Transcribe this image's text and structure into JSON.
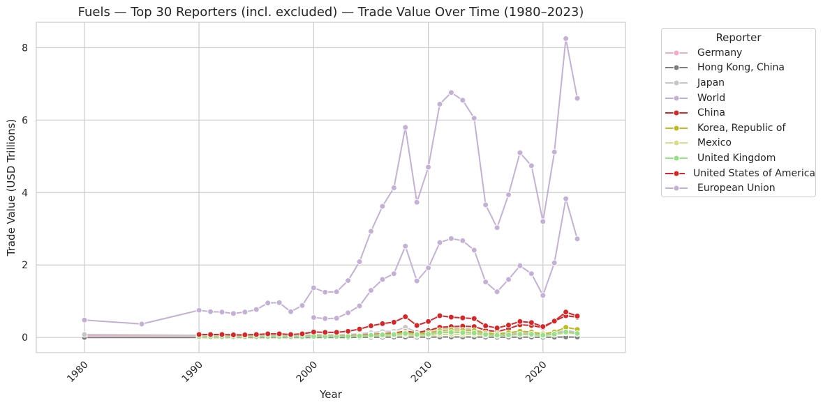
{
  "chart_data": {
    "type": "line",
    "title": "Fuels — Top 30 Reporters (incl. excluded) — Trade Value Over Time (1980–2023)",
    "xlabel": "Year",
    "ylabel": "Trade Value (USD Trillions)",
    "xlim": [
      1975.8,
      2027.2
    ],
    "ylim": [
      -0.42,
      8.7
    ],
    "xticks": [
      1980,
      1990,
      2000,
      2010,
      2020
    ],
    "yticks": [
      0,
      2,
      4,
      6,
      8
    ],
    "grid": true,
    "legend_title": "Reporter",
    "legend_position": "outside-right",
    "series": [
      {
        "name": "Germany",
        "color": "#f4a9c8",
        "x": [
          1980,
          1990,
          1991,
          1992,
          1993,
          1994,
          1995,
          1996,
          1997,
          1998,
          1999,
          2000,
          2001,
          2002,
          2003,
          2004,
          2005,
          2006,
          2007,
          2008,
          2009,
          2010,
          2011,
          2012,
          2013,
          2014,
          2015,
          2016,
          2017,
          2018,
          2019,
          2020,
          2021,
          2022,
          2023
        ],
        "values": [
          0.05,
          0.05,
          0.05,
          0.045,
          0.045,
          0.04,
          0.045,
          0.05,
          0.05,
          0.04,
          0.04,
          0.05,
          0.05,
          0.05,
          0.06,
          0.07,
          0.09,
          0.1,
          0.12,
          0.15,
          0.1,
          0.12,
          0.15,
          0.15,
          0.15,
          0.14,
          0.09,
          0.07,
          0.09,
          0.11,
          0.1,
          0.07,
          0.1,
          0.16,
          0.12
        ]
      },
      {
        "name": "Hong Kong, China",
        "color": "#7f7f7f",
        "x": [
          1980,
          1990,
          1991,
          1992,
          1993,
          1994,
          1995,
          1996,
          1997,
          1998,
          1999,
          2000,
          2001,
          2002,
          2003,
          2004,
          2005,
          2006,
          2007,
          2008,
          2009,
          2010,
          2011,
          2012,
          2013,
          2014,
          2015,
          2016,
          2017,
          2018,
          2019,
          2020,
          2021,
          2022,
          2023
        ],
        "values": [
          0.0,
          0.0,
          0.0,
          0.0,
          0.0,
          0.0,
          0.0,
          0.0,
          0.0,
          0.0,
          0.0,
          0.0,
          0.0,
          0.0,
          0.0,
          0.005,
          0.005,
          0.008,
          0.01,
          0.012,
          0.008,
          0.01,
          0.012,
          0.012,
          0.012,
          0.012,
          0.008,
          0.006,
          0.008,
          0.01,
          0.009,
          0.006,
          0.008,
          0.012,
          0.01
        ]
      },
      {
        "name": "Japan",
        "color": "#c7c7c7",
        "x": [
          1980,
          1990,
          1991,
          1992,
          1993,
          1994,
          1995,
          1996,
          1997,
          1998,
          1999,
          2000,
          2001,
          2002,
          2003,
          2004,
          2005,
          2006,
          2007,
          2008,
          2009,
          2010,
          2011,
          2012,
          2013,
          2014,
          2015,
          2016,
          2017,
          2018,
          2019,
          2020,
          2021,
          2022,
          2023
        ],
        "values": [
          0.08,
          0.06,
          0.06,
          0.06,
          0.05,
          0.05,
          0.06,
          0.06,
          0.06,
          0.04,
          0.05,
          0.08,
          0.07,
          0.07,
          0.08,
          0.1,
          0.13,
          0.16,
          0.17,
          0.28,
          0.15,
          0.19,
          0.24,
          0.26,
          0.25,
          0.22,
          0.13,
          0.09,
          0.12,
          0.16,
          0.13,
          0.08,
          0.12,
          0.2,
          0.14
        ]
      },
      {
        "name": "World",
        "color": "#c5b0d5",
        "x": [
          1980,
          1985,
          1990,
          1991,
          1992,
          1993,
          1994,
          1995,
          1996,
          1997,
          1998,
          1999,
          2000,
          2001,
          2002,
          2003,
          2004,
          2005,
          2006,
          2007,
          2008,
          2009,
          2010,
          2011,
          2012,
          2013,
          2014,
          2015,
          2016,
          2017,
          2018,
          2019,
          2020,
          2021,
          2022,
          2023
        ],
        "values": [
          0.48,
          0.37,
          0.75,
          0.71,
          0.7,
          0.66,
          0.7,
          0.77,
          0.95,
          0.96,
          0.71,
          0.88,
          1.37,
          1.25,
          1.26,
          1.57,
          2.09,
          2.93,
          3.62,
          4.13,
          5.8,
          3.73,
          4.7,
          6.44,
          6.76,
          6.55,
          6.05,
          3.66,
          3.03,
          3.94,
          5.1,
          4.74,
          3.2,
          5.12,
          8.25,
          6.6
        ]
      },
      {
        "name": "China",
        "color": "#d62728",
        "x": [
          1990,
          1991,
          1992,
          1993,
          1994,
          1995,
          1996,
          1997,
          1998,
          1999,
          2000,
          2001,
          2002,
          2003,
          2004,
          2005,
          2006,
          2007,
          2008,
          2009,
          2010,
          2011,
          2012,
          2013,
          2014,
          2015,
          2016,
          2017,
          2018,
          2019,
          2020,
          2021,
          2022,
          2023
        ],
        "values": [
          0.005,
          0.005,
          0.006,
          0.008,
          0.008,
          0.01,
          0.012,
          0.015,
          0.012,
          0.015,
          0.025,
          0.025,
          0.03,
          0.04,
          0.06,
          0.08,
          0.1,
          0.12,
          0.17,
          0.13,
          0.19,
          0.28,
          0.3,
          0.31,
          0.3,
          0.2,
          0.16,
          0.24,
          0.35,
          0.33,
          0.27,
          0.45,
          0.6,
          0.56
        ]
      },
      {
        "name": "Korea, Republic of",
        "color": "#bcbd22",
        "x": [
          1990,
          1991,
          1992,
          1993,
          1994,
          1995,
          1996,
          1997,
          1998,
          1999,
          2000,
          2001,
          2002,
          2003,
          2004,
          2005,
          2006,
          2007,
          2008,
          2009,
          2010,
          2011,
          2012,
          2013,
          2014,
          2015,
          2016,
          2017,
          2018,
          2019,
          2020,
          2021,
          2022,
          2023
        ],
        "values": [
          0.01,
          0.01,
          0.01,
          0.012,
          0.015,
          0.02,
          0.025,
          0.03,
          0.02,
          0.025,
          0.04,
          0.035,
          0.035,
          0.04,
          0.05,
          0.07,
          0.09,
          0.1,
          0.14,
          0.1,
          0.13,
          0.19,
          0.21,
          0.2,
          0.19,
          0.12,
          0.1,
          0.13,
          0.17,
          0.15,
          0.1,
          0.15,
          0.28,
          0.22
        ]
      },
      {
        "name": "Mexico",
        "color": "#dbdb8d",
        "x": [
          1990,
          1991,
          1992,
          1993,
          1994,
          1995,
          1996,
          1997,
          1998,
          1999,
          2000,
          2001,
          2002,
          2003,
          2004,
          2005,
          2006,
          2007,
          2008,
          2009,
          2010,
          2011,
          2012,
          2013,
          2014,
          2015,
          2016,
          2017,
          2018,
          2019,
          2020,
          2021,
          2022,
          2023
        ],
        "values": [
          0.01,
          0.01,
          0.01,
          0.01,
          0.012,
          0.012,
          0.014,
          0.015,
          0.012,
          0.014,
          0.02,
          0.02,
          0.02,
          0.025,
          0.03,
          0.04,
          0.05,
          0.06,
          0.07,
          0.05,
          0.06,
          0.08,
          0.08,
          0.08,
          0.08,
          0.06,
          0.05,
          0.06,
          0.08,
          0.07,
          0.05,
          0.08,
          0.12,
          0.1
        ]
      },
      {
        "name": "United Kingdom",
        "color": "#98df8a",
        "x": [
          1990,
          1991,
          1992,
          1993,
          1994,
          1995,
          1996,
          1997,
          1998,
          1999,
          2000,
          2001,
          2002,
          2003,
          2004,
          2005,
          2006,
          2007,
          2008,
          2009,
          2010,
          2011,
          2012,
          2013,
          2014,
          2015,
          2016,
          2017,
          2018,
          2019,
          2020,
          2021,
          2022,
          2023
        ],
        "values": [
          0.02,
          0.02,
          0.02,
          0.02,
          0.02,
          0.02,
          0.025,
          0.025,
          0.02,
          0.02,
          0.03,
          0.03,
          0.03,
          0.03,
          0.04,
          0.06,
          0.07,
          0.08,
          0.11,
          0.08,
          0.09,
          0.13,
          0.14,
          0.13,
          0.12,
          0.08,
          0.06,
          0.07,
          0.09,
          0.09,
          0.06,
          0.09,
          0.15,
          0.11
        ]
      },
      {
        "name": "United States of America",
        "color": "#d62728",
        "x": [
          1990,
          1991,
          1992,
          1993,
          1994,
          1995,
          1996,
          1997,
          1998,
          1999,
          2000,
          2001,
          2002,
          2003,
          2004,
          2005,
          2006,
          2007,
          2008,
          2009,
          2010,
          2011,
          2012,
          2013,
          2014,
          2015,
          2016,
          2017,
          2018,
          2019,
          2020,
          2021,
          2022,
          2023
        ],
        "values": [
          0.08,
          0.08,
          0.08,
          0.07,
          0.07,
          0.08,
          0.1,
          0.1,
          0.08,
          0.1,
          0.15,
          0.14,
          0.14,
          0.17,
          0.23,
          0.32,
          0.38,
          0.42,
          0.57,
          0.33,
          0.44,
          0.6,
          0.56,
          0.54,
          0.52,
          0.32,
          0.26,
          0.34,
          0.44,
          0.41,
          0.3,
          0.45,
          0.7,
          0.59
        ]
      },
      {
        "name": "European Union",
        "color": "#c5b0d5",
        "x": [
          2000,
          2001,
          2002,
          2003,
          2004,
          2005,
          2006,
          2007,
          2008,
          2009,
          2010,
          2011,
          2012,
          2013,
          2014,
          2015,
          2016,
          2017,
          2018,
          2019,
          2020,
          2021,
          2022,
          2023
        ],
        "values": [
          0.55,
          0.52,
          0.53,
          0.68,
          0.87,
          1.3,
          1.6,
          1.76,
          2.52,
          1.56,
          1.92,
          2.62,
          2.73,
          2.67,
          2.41,
          1.53,
          1.26,
          1.6,
          1.98,
          1.76,
          1.16,
          2.06,
          3.83,
          2.72
        ]
      }
    ]
  }
}
